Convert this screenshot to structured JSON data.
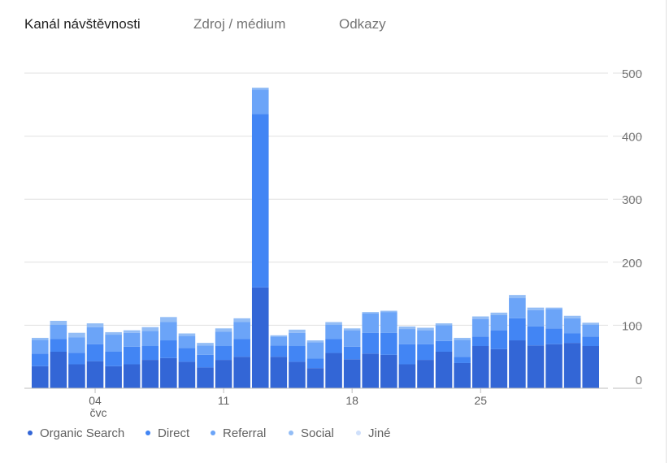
{
  "tabs": [
    {
      "label": "Kanál návštěvnosti",
      "active": true
    },
    {
      "label": "Zdroj / médium",
      "active": false
    },
    {
      "label": "Odkazy",
      "active": false
    }
  ],
  "legend": [
    {
      "label": "Organic Search",
      "color": "#3366d6"
    },
    {
      "label": "Direct",
      "color": "#4285f4"
    },
    {
      "label": "Referral",
      "color": "#6ba4f8"
    },
    {
      "label": "Social",
      "color": "#93bdf6"
    },
    {
      "label": "Jiné",
      "color": "#cfe0fb"
    }
  ],
  "chart_data": {
    "type": "bar",
    "stacked": true,
    "ylim": [
      0,
      500
    ],
    "yticks": [
      0,
      100,
      200,
      300,
      400,
      500
    ],
    "grid": true,
    "legend_position": "bottom",
    "x_tick_labels": [
      {
        "index": 3,
        "label": "04",
        "sublabel": "čvc"
      },
      {
        "index": 10,
        "label": "11"
      },
      {
        "index": 17,
        "label": "18"
      },
      {
        "index": 24,
        "label": "25"
      }
    ],
    "categories": [
      "1",
      "2",
      "3",
      "4",
      "5",
      "6",
      "7",
      "8",
      "9",
      "10",
      "11",
      "12",
      "13",
      "14",
      "15",
      "16",
      "17",
      "18",
      "19",
      "20",
      "21",
      "22",
      "23",
      "24",
      "25",
      "26",
      "27",
      "28",
      "29",
      "30",
      "31"
    ],
    "series": [
      {
        "name": "Organic Search",
        "color": "#3366d6",
        "values": [
          35,
          58,
          38,
          43,
          35,
          38,
          45,
          48,
          42,
          33,
          45,
          50,
          160,
          50,
          42,
          32,
          56,
          46,
          55,
          53,
          38,
          45,
          58,
          40,
          67,
          62,
          76,
          68,
          70,
          72,
          67
        ]
      },
      {
        "name": "Direct",
        "color": "#4285f4",
        "values": [
          20,
          20,
          18,
          27,
          23,
          28,
          22,
          28,
          22,
          20,
          22,
          28,
          275,
          18,
          25,
          15,
          22,
          20,
          33,
          35,
          32,
          25,
          17,
          10,
          15,
          30,
          35,
          30,
          25,
          15,
          15
        ]
      },
      {
        "name": "Referral",
        "color": "#6ba4f8",
        "values": [
          22,
          23,
          25,
          27,
          27,
          22,
          24,
          29,
          19,
          15,
          23,
          27,
          39,
          14,
          21,
          26,
          23,
          26,
          31,
          33,
          24,
          22,
          25,
          27,
          28,
          24,
          32,
          26,
          31,
          24,
          19
        ]
      },
      {
        "name": "Social",
        "color": "#93bdf6",
        "values": [
          3,
          6,
          7,
          6,
          4,
          4,
          6,
          8,
          4,
          4,
          5,
          6,
          3,
          2,
          5,
          3,
          4,
          3,
          2,
          2,
          4,
          4,
          3,
          3,
          4,
          4,
          5,
          4,
          2,
          4,
          3
        ]
      },
      {
        "name": "Jiné",
        "color": "#cfe0fb",
        "values": [
          0,
          0,
          0,
          0,
          0,
          0,
          0,
          0,
          0,
          0,
          0,
          0,
          0,
          0,
          0,
          0,
          0,
          0,
          0,
          0,
          0,
          0,
          0,
          0,
          0,
          0,
          0,
          0,
          0,
          0,
          0
        ]
      }
    ]
  }
}
